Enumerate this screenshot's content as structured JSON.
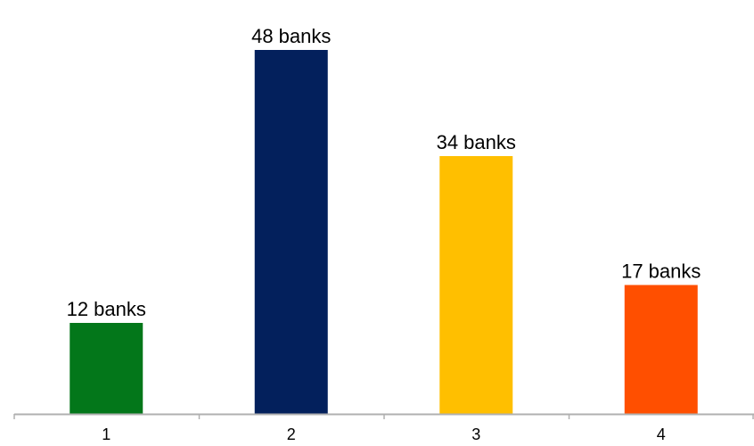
{
  "chart_data": {
    "type": "bar",
    "categories": [
      "1",
      "2",
      "3",
      "4"
    ],
    "values": [
      12,
      48,
      34,
      17
    ],
    "data_labels": [
      "12 banks",
      "48 banks",
      "34 banks",
      "17 banks"
    ],
    "colors": [
      "#03771a",
      "#03205c",
      "#ffbf00",
      "#ff4f00"
    ],
    "ylim": [
      0,
      50
    ],
    "grid": false,
    "legend": "none",
    "axis_color": "#b0b0b0"
  }
}
